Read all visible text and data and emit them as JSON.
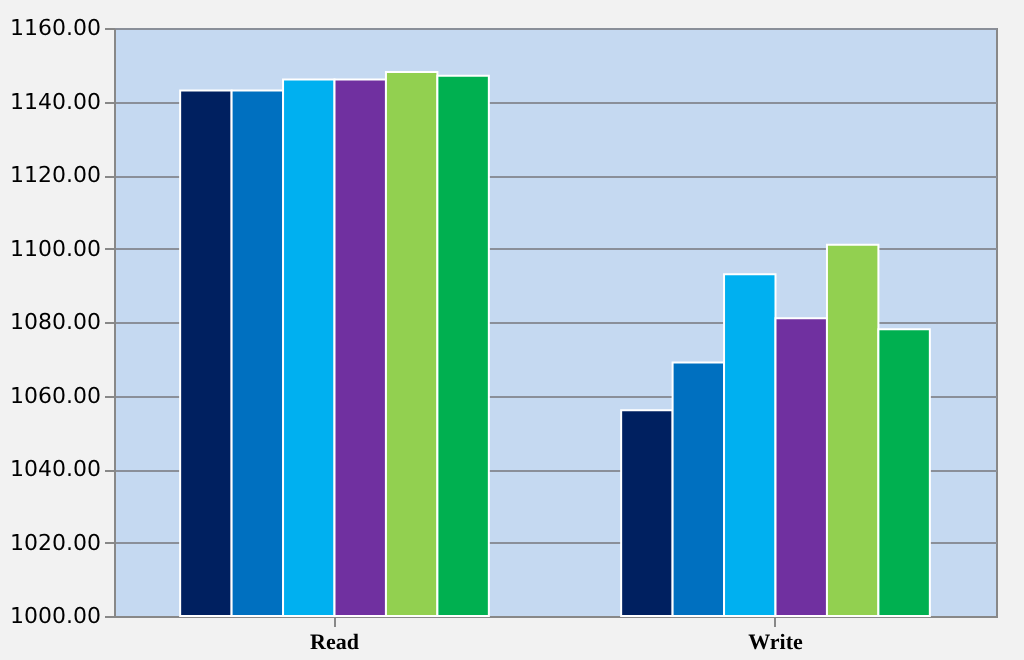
{
  "chart_data": {
    "type": "bar",
    "categories": [
      "Read",
      "Write"
    ],
    "series": [
      {
        "color": "#002060",
        "values": [
          1143,
          1056
        ]
      },
      {
        "color": "#0070c0",
        "values": [
          1143,
          1069
        ]
      },
      {
        "color": "#00b0f0",
        "values": [
          1146,
          1093
        ]
      },
      {
        "color": "#7030a0",
        "values": [
          1146,
          1081
        ]
      },
      {
        "color": "#92d050",
        "values": [
          1148,
          1101
        ]
      },
      {
        "color": "#00b050",
        "values": [
          1147,
          1078
        ]
      }
    ],
    "ylim": [
      1000,
      1160
    ],
    "yticks": [
      {
        "value": 1000,
        "label": "1000.00"
      },
      {
        "value": 1020,
        "label": "1020.00"
      },
      {
        "value": 1040,
        "label": "1040.00"
      },
      {
        "value": 1060,
        "label": "1060.00"
      },
      {
        "value": 1080,
        "label": "1080.00"
      },
      {
        "value": 1100,
        "label": "1100.00"
      },
      {
        "value": 1120,
        "label": "1120.00"
      },
      {
        "value": 1140,
        "label": "1140.00"
      },
      {
        "value": 1160,
        "label": "1160.00"
      }
    ],
    "grid": "y",
    "legend": false
  }
}
